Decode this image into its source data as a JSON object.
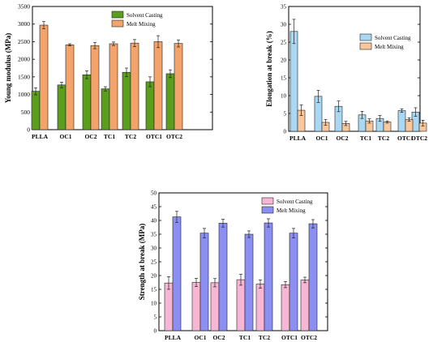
{
  "chart_data": [
    {
      "type": "bar",
      "title": "",
      "xlabel": "",
      "ylabel": "Young modulus (MPa)",
      "categories": [
        "PLLA",
        "OC1",
        "OC2",
        "TC1",
        "TC2",
        "OTC1",
        "OTC2"
      ],
      "ylim": [
        0,
        3500
      ],
      "yticks": [
        "0",
        "500",
        "1000",
        "1500",
        "2000",
        "2500",
        "3000",
        "3500"
      ],
      "legend_position": "top-right",
      "series": [
        {
          "name": "Solvent Casting",
          "color": "#5a9e1c",
          "values": [
            1090,
            1270,
            1560,
            1160,
            1630,
            1360,
            1590
          ],
          "errors": [
            100,
            80,
            110,
            60,
            120,
            140,
            110
          ]
        },
        {
          "name": "Melt Mixing",
          "color": "#f4a46a",
          "values": [
            2970,
            2410,
            2390,
            2440,
            2460,
            2500,
            2450
          ],
          "errors": [
            100,
            30,
            90,
            50,
            100,
            170,
            100
          ]
        }
      ]
    },
    {
      "type": "bar",
      "title": "",
      "xlabel": "",
      "ylabel": "Elongation at break (%)",
      "categories": [
        "PLLA",
        "OC1",
        "OC2",
        "TC1",
        "TC2",
        "OTC1",
        "OTC2"
      ],
      "ylim": [
        0,
        35
      ],
      "yticks": [
        "0",
        "5",
        "10",
        "15",
        "20",
        "25",
        "30",
        "35"
      ],
      "legend_position": "top-right",
      "series": [
        {
          "name": "Solvent Casting",
          "color": "#aad8f2",
          "values": [
            28.0,
            9.8,
            7.0,
            4.6,
            3.6,
            5.8,
            5.4
          ],
          "errors": [
            3.4,
            1.7,
            1.5,
            1.0,
            0.8,
            0.5,
            1.2
          ]
        },
        {
          "name": "Melt Mixing",
          "color": "#f9c79b",
          "values": [
            5.9,
            2.5,
            2.2,
            2.9,
            2.6,
            3.3,
            2.3
          ],
          "errors": [
            1.5,
            0.8,
            0.6,
            0.6,
            0.3,
            0.5,
            0.8
          ]
        }
      ]
    },
    {
      "type": "bar",
      "title": "",
      "xlabel": "",
      "ylabel": "Strength at break (MPa)",
      "categories": [
        "PLLA",
        "OC1",
        "OC2",
        "TC1",
        "TC2",
        "OTC1",
        "OTC2"
      ],
      "ylim": [
        0,
        50
      ],
      "yticks": [
        "0",
        "5",
        "10",
        "15",
        "20",
        "25",
        "30",
        "35",
        "40",
        "45",
        "50"
      ],
      "legend_position": "top-right",
      "series": [
        {
          "name": "Solvent Casting",
          "color": "#f8b6d5",
          "values": [
            17.3,
            17.5,
            17.4,
            18.5,
            16.9,
            16.7,
            18.4
          ],
          "errors": [
            2.3,
            1.5,
            1.5,
            2.0,
            1.5,
            1.1,
            1.0
          ]
        },
        {
          "name": "Melt Mixing",
          "color": "#8b8ff2",
          "values": [
            41.3,
            35.4,
            39.0,
            35.0,
            39.1,
            35.4,
            38.8
          ],
          "errors": [
            2.0,
            1.7,
            1.4,
            1.2,
            1.5,
            1.7,
            1.5
          ]
        }
      ]
    }
  ]
}
